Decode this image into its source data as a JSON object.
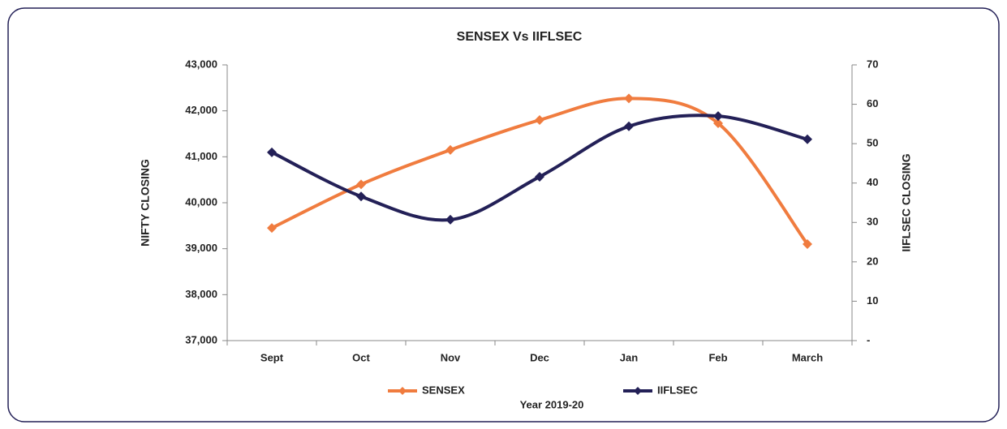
{
  "chart_data": {
    "type": "line",
    "title": "SENSEX Vs IIFLSEC",
    "x_label": "Year 2019-20",
    "y_label": "NIFTY CLOSING",
    "y2_label": "IIFLSEC CLOSING",
    "categories": [
      "Sept",
      "Oct",
      "Nov",
      "Dec",
      "Jan",
      "Feb",
      "March"
    ],
    "series": [
      {
        "name": "SENSEX",
        "color": "#f07c3f",
        "values": [
          39450,
          40400,
          41150,
          41800,
          42270,
          41730,
          39100
        ]
      },
      {
        "name": "IIFLSEC",
        "color": "#232057",
        "axis": "y2",
        "values": [
          47.8,
          36.6,
          30.7,
          41.6,
          54.4,
          57.0,
          51.1
        ]
      }
    ],
    "ylim": [
      37000,
      43000
    ],
    "yticks": [
      {
        "value": 37000,
        "label": "37,000"
      },
      {
        "value": 38000,
        "label": "38,000"
      },
      {
        "value": 39000,
        "label": "39,000"
      },
      {
        "value": 40000,
        "label": "40,000"
      },
      {
        "value": 41000,
        "label": "41,000"
      },
      {
        "value": 42000,
        "label": "42,000"
      },
      {
        "value": 43000,
        "label": "43,000"
      }
    ],
    "y2lim": [
      0,
      70
    ],
    "y2ticks": [
      {
        "value": 0,
        "label": "-"
      },
      10,
      20,
      30,
      40,
      50,
      60,
      70
    ],
    "grid": false,
    "legend": "bottom"
  }
}
